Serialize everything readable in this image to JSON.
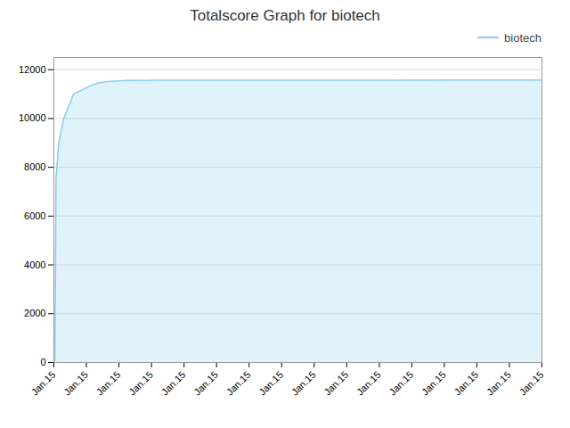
{
  "chart_data": {
    "type": "area",
    "title": "Totalscore Graph for biotech",
    "x": [
      0,
      0.1,
      0.15,
      0.18,
      0.2,
      0.22,
      0.25,
      0.28,
      0.3,
      0.32,
      0.35,
      0.38,
      0.4,
      0.42,
      0.45,
      0.5,
      1,
      2,
      3,
      4,
      5,
      6,
      7,
      8,
      9,
      10,
      11,
      12,
      13,
      14,
      15,
      16,
      17,
      18,
      19,
      20,
      21,
      22,
      23,
      24,
      25,
      26,
      27,
      28,
      29,
      30,
      31,
      32,
      33,
      34,
      35,
      36,
      37,
      38,
      39,
      40,
      41,
      42,
      43,
      44,
      45,
      46,
      47,
      48,
      49,
      50,
      51,
      52,
      53,
      54,
      55,
      56,
      57,
      58,
      59,
      60,
      61,
      62,
      63,
      64,
      65,
      66,
      67,
      68,
      69,
      90,
      91,
      92,
      93,
      94,
      95,
      96,
      97,
      98,
      99
    ],
    "series": [
      {
        "name": "biotech",
        "color": "#87CEEB",
        "values": [
          0,
          50,
          100,
          200,
          400,
          800,
          1500,
          2500,
          3400,
          3500,
          4500,
          5500,
          6500,
          7200,
          7600,
          7700,
          9000,
          10000,
          10500,
          11000,
          11100,
          11200,
          11300,
          11400,
          11450,
          11490,
          11510,
          11530,
          11540,
          11550,
          11555,
          11558,
          11560,
          11562,
          11563,
          11564,
          11565,
          11566,
          11567,
          11568,
          11568,
          11568,
          11568,
          11568,
          11568,
          11568,
          11568,
          11568,
          11568,
          11568,
          11568,
          11568,
          11568,
          11568,
          11568,
          11568,
          11568,
          11568,
          11568,
          11568,
          11568,
          11568,
          11568,
          11568,
          11568,
          11568,
          11568,
          11568,
          11568,
          11568,
          11568,
          11568,
          11568,
          11568,
          11568,
          11568,
          11568,
          11568,
          11568,
          11568,
          11568,
          11568,
          11568,
          11568,
          11568,
          11580,
          11580,
          11580,
          11580,
          11580,
          11580,
          11580,
          11580,
          11580,
          11580
        ]
      }
    ],
    "xlim": [
      0,
      99
    ],
    "xticks": [
      {
        "value": 0,
        "label": "Jan.15"
      },
      {
        "value": 6.6,
        "label": "Jan.15"
      },
      {
        "value": 13.2,
        "label": "Jan.15"
      },
      {
        "value": 19.8,
        "label": "Jan.15"
      },
      {
        "value": 26.4,
        "label": "Jan.15"
      },
      {
        "value": 33,
        "label": "Jan.15"
      },
      {
        "value": 39.6,
        "label": "Jan.15"
      },
      {
        "value": 46.2,
        "label": "Jan.15"
      },
      {
        "value": 52.8,
        "label": "Jan.15"
      },
      {
        "value": 59.4,
        "label": "Jan.15"
      },
      {
        "value": 66,
        "label": "Jan.15"
      },
      {
        "value": 72.6,
        "label": "Jan.15"
      },
      {
        "value": 79.2,
        "label": "Jan.15"
      },
      {
        "value": 85.8,
        "label": "Jan.15"
      },
      {
        "value": 92.4,
        "label": "Jan.15"
      },
      {
        "value": 99,
        "label": "Jan.15"
      }
    ],
    "ylim": [
      0,
      12500
    ],
    "yticks": [
      0,
      2000,
      4000,
      6000,
      8000,
      10000,
      12000
    ],
    "grid": true,
    "legend": "upper right"
  }
}
